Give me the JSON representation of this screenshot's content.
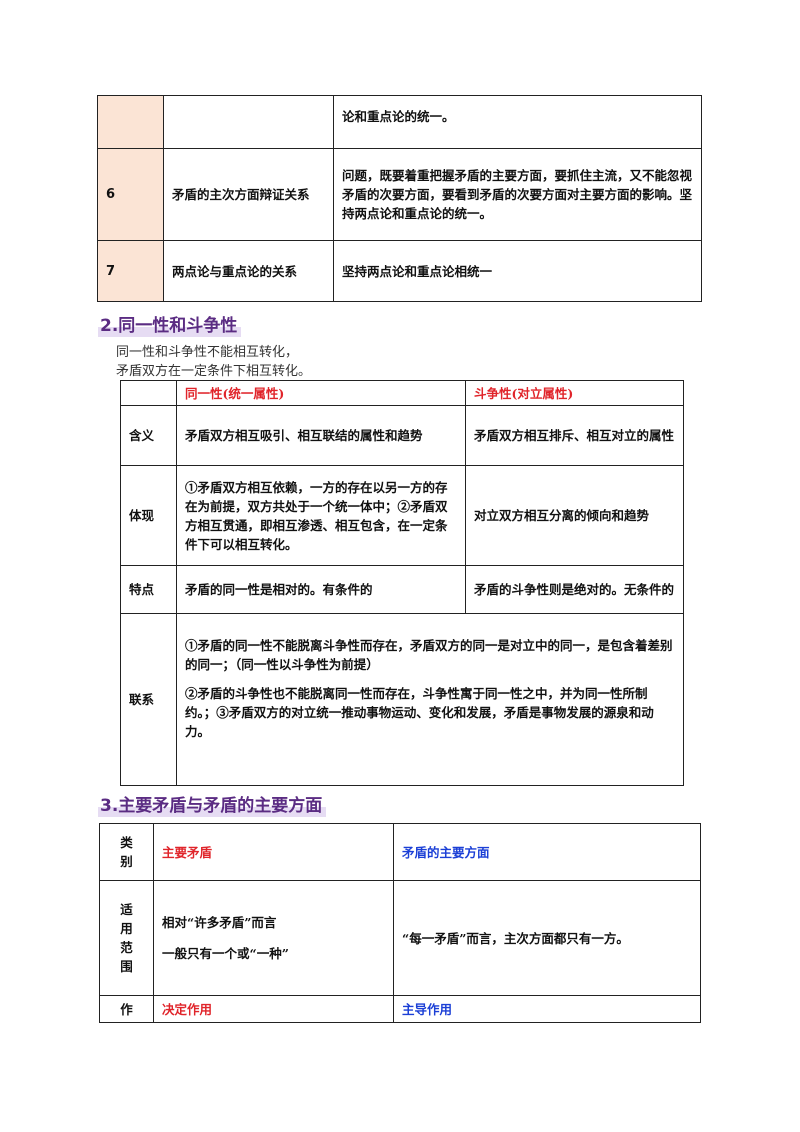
{
  "table1": {
    "rows": [
      {
        "num": "",
        "topic": "",
        "content": "论和重点论的统一。"
      },
      {
        "num": "6",
        "topic": "矛盾的主次方面辩证关系",
        "content": "问题，既要着重把握矛盾的主要方面，要抓住主流，又不能忽视矛盾的次要方面，要看到矛盾的次要方面对主要方面的影响。坚持两点论和重点论的统一。"
      },
      {
        "num": "7",
        "topic": "两点论与重点论的关系",
        "content": "坚持两点论和重点论相统一"
      }
    ]
  },
  "section2": {
    "heading": "2.同一性和斗争性",
    "intro1": "同一性和斗争性不能相互转化，",
    "intro2": "矛盾双方在一定条件下相互转化。",
    "col_identity": "同一性(统一属性)",
    "col_struggle": "斗争性(对立属性)",
    "rows": [
      {
        "label": "含义",
        "identity": "矛盾双方相互吸引、相互联结的属性和趋势",
        "struggle": "矛盾双方相互排斥、相互对立的属性"
      },
      {
        "label": "体现",
        "identity": "①矛盾双方相互依赖，一方的存在以另一方的存在为前提，双方共处于一个统一体中；②矛盾双方相互贯通，即相互渗透、相互包含，在一定条件下可以相互转化。",
        "struggle": "对立双方相互分离的倾向和趋势"
      },
      {
        "label": "特点",
        "identity": "矛盾的同一性是相对的。有条件的",
        "struggle": "矛盾的斗争性则是绝对的。无条件的"
      }
    ],
    "link_label": "联系",
    "link_para1": "①矛盾的同一性不能脱离斗争性而存在，矛盾双方的同一是对立中的同一，是包含着差别的同一；（同一性以斗争性为前提）",
    "link_para2": "②矛盾的斗争性也不能脱离同一性而存在，斗争性寓于同一性之中，并为同一性所制约。；③矛盾双方的对立统一推动事物运动、变化和发展，矛盾是事物发展的源泉和动力。"
  },
  "section3": {
    "heading": "3.主要矛盾与矛盾的主要方面",
    "header_label": "类别",
    "col_main": "主要矛盾",
    "col_aspect": "矛盾的主要方面",
    "scope_label": "适用范围",
    "scope_main_1": "相对“许多矛盾”而言",
    "scope_main_2": "一般只有一个或“一种”",
    "scope_aspect": "“每一矛盾”而言，主次方面都只有一方。",
    "role_label": "作",
    "role_main": "决定作用",
    "role_aspect": "主导作用"
  },
  "colors": {
    "peach": "#fbe4d5",
    "heading": "#5b2c83",
    "red": "#e0242a",
    "blue": "#1b3fd6"
  }
}
